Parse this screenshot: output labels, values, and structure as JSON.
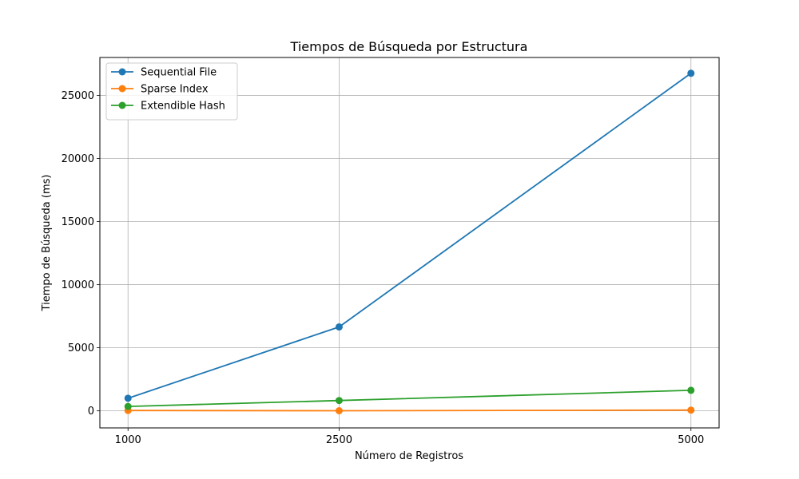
{
  "chart_data": {
    "type": "line",
    "title": "Tiempos de Búsqueda por Estructura",
    "xlabel": "Número de Registros",
    "ylabel": "Tiempo de Búsqueda (ms)",
    "x": [
      1000,
      2500,
      5000
    ],
    "x_tick_labels": [
      "1000",
      "2500",
      "5000"
    ],
    "xlim": [
      800,
      5200
    ],
    "ylim": [
      -1350,
      28000
    ],
    "y_ticks": [
      0,
      5000,
      10000,
      15000,
      20000,
      25000
    ],
    "y_tick_labels": [
      "0",
      "5000",
      "10000",
      "15000",
      "20000",
      "25000"
    ],
    "grid": true,
    "legend_position": "top-left",
    "series": [
      {
        "name": "Sequential File",
        "color": "#1f77b4",
        "values": [
          1000,
          6650,
          26750
        ]
      },
      {
        "name": "Sparse Index",
        "color": "#ff7f0e",
        "values": [
          30,
          10,
          60
        ]
      },
      {
        "name": "Extendible Hash",
        "color": "#2ca02c",
        "values": [
          350,
          820,
          1630
        ]
      }
    ]
  }
}
